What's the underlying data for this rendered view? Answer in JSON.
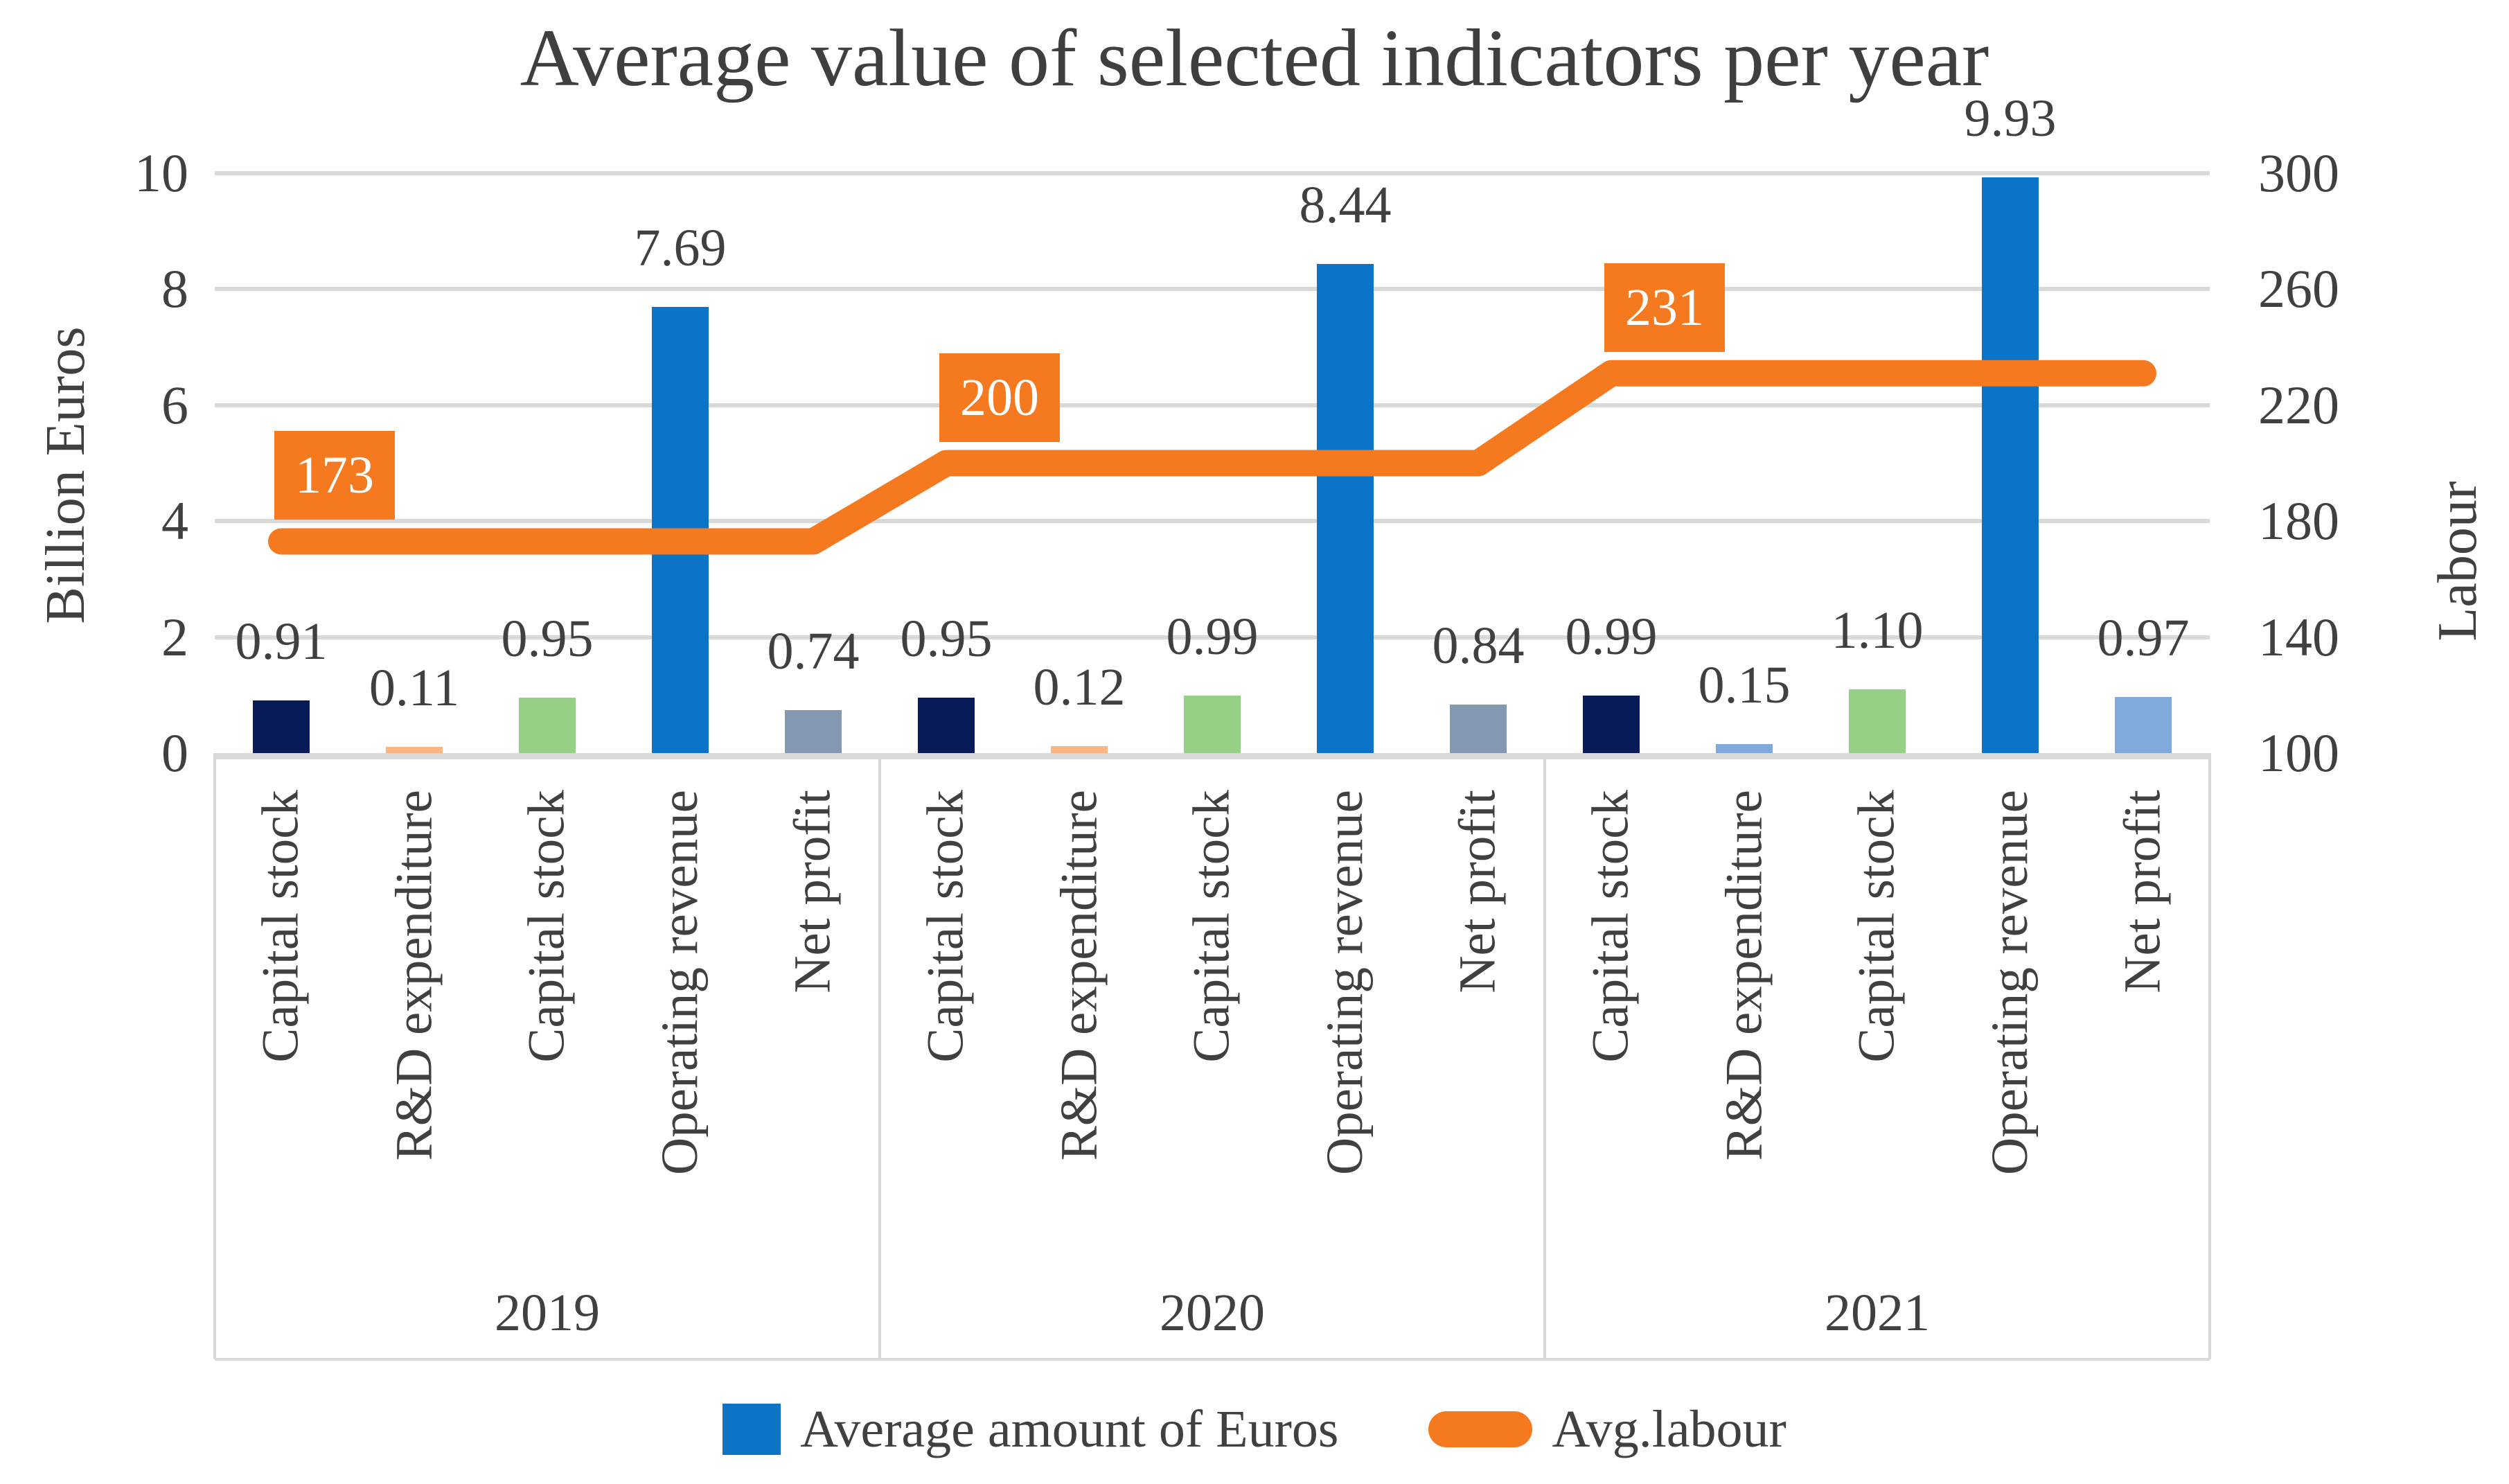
{
  "page": {
    "background": "#ffffff",
    "text_color": "#404040"
  },
  "chart_data": {
    "type": "bar+line combo",
    "title": "Average value of selected indicators per year",
    "left_axis": {
      "title": "Billion Euros",
      "ticks": [
        10,
        8,
        6,
        4,
        2,
        0
      ],
      "range": [
        0,
        10
      ],
      "grid": true
    },
    "right_axis": {
      "title": "Labour",
      "ticks": [
        300,
        260,
        220,
        180,
        140,
        100
      ],
      "range": [
        100,
        300
      ]
    },
    "groups": [
      {
        "year": "2019",
        "bars": [
          {
            "category": "Capital stock",
            "value": 0.91,
            "label": "0.91",
            "color": "navy"
          },
          {
            "category": "R&D expenditure",
            "value": 0.11,
            "label": "0.11",
            "color": "peach"
          },
          {
            "category": "Capital stock",
            "value": 0.95,
            "label": "0.95",
            "color": "green"
          },
          {
            "category": "Operating revenue",
            "value": 7.69,
            "label": "7.69",
            "color": "blue"
          },
          {
            "category": "Net profit",
            "value": 0.74,
            "label": "0.74",
            "color": "grayblue"
          }
        ]
      },
      {
        "year": "2020",
        "bars": [
          {
            "category": "Capital stock",
            "value": 0.95,
            "label": "0.95",
            "color": "navy"
          },
          {
            "category": "R&D expenditure",
            "value": 0.12,
            "label": "0.12",
            "color": "peach"
          },
          {
            "category": "Capital stock",
            "value": 0.99,
            "label": "0.99",
            "color": "green"
          },
          {
            "category": "Operating revenue",
            "value": 8.44,
            "label": "8.44",
            "color": "blue"
          },
          {
            "category": "Net profit",
            "value": 0.84,
            "label": "0.84",
            "color": "grayblue"
          }
        ]
      },
      {
        "year": "2021",
        "bars": [
          {
            "category": "Capital stock",
            "value": 0.99,
            "label": "0.99",
            "color": "navy"
          },
          {
            "category": "R&D expenditure",
            "value": 0.15,
            "label": "0.15",
            "color": "lightblue"
          },
          {
            "category": "Capital stock",
            "value": 1.1,
            "label": "1.10",
            "color": "green"
          },
          {
            "category": "Operating revenue",
            "value": 9.93,
            "label": "9.93",
            "color": "blue"
          },
          {
            "category": "Net profit",
            "value": 0.97,
            "label": "0.97",
            "color": "lightblue"
          }
        ]
      }
    ],
    "line_series": {
      "name": "Avg.labour",
      "axis": "right",
      "values": [
        173,
        200,
        231
      ],
      "labels": [
        "173",
        "200",
        "231"
      ],
      "color": "orange"
    },
    "legend": [
      {
        "label": "Average amount of Euros",
        "swatch": "bar",
        "color": "blue"
      },
      {
        "label": "Avg.labour",
        "swatch": "line",
        "color": "orange"
      }
    ],
    "colors": {
      "navy": "#081a5a",
      "peach": "#fcb582",
      "green": "#94d086",
      "blue": "#0b74c6",
      "grayblue": "#8399b2",
      "lightblue": "#81aadc",
      "orange": "#f5791f",
      "grid": "#d9d9d9",
      "text": "#404040",
      "badge_text": "#ffffff"
    }
  }
}
